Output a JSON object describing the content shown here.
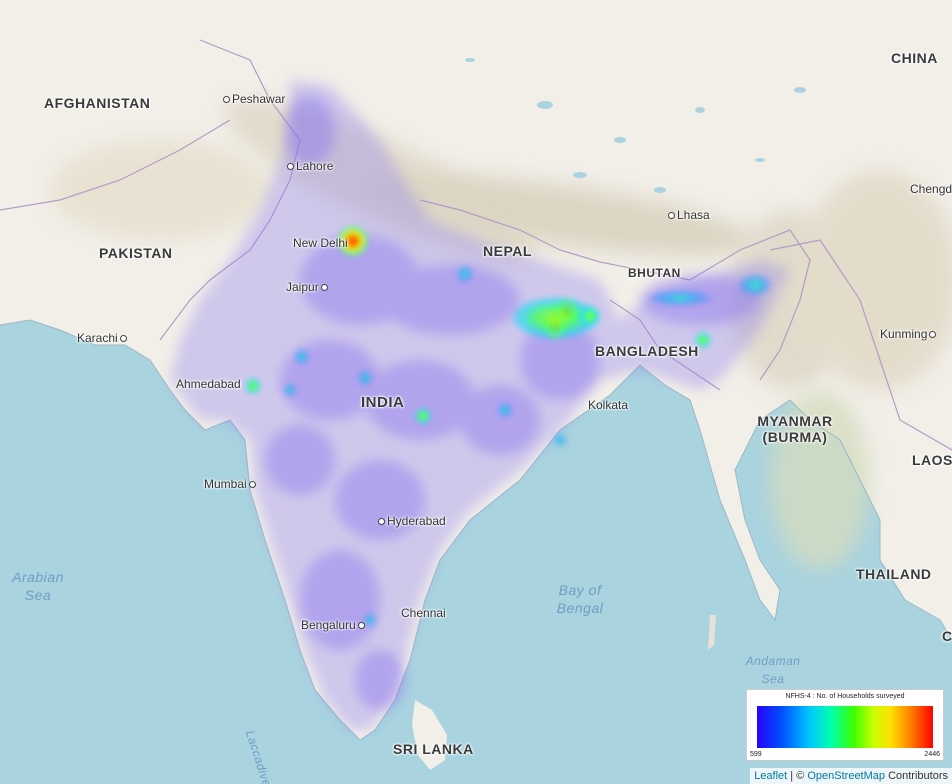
{
  "map": {
    "countries": [
      "AFGHANISTAN",
      "PAKISTAN",
      "NEPAL",
      "BHUTAN",
      "BANGLADESH",
      "INDIA",
      "CHINA",
      "MYANMAR (BURMA)",
      "LAOS",
      "THAILAND",
      "SRI LANKA",
      "C"
    ],
    "cities": [
      "Peshawar",
      "Lahore",
      "New Delhi",
      "Jaipur",
      "Karachi",
      "Ahmedabad",
      "Mumbai",
      "Hyderabad",
      "Bengaluru",
      "Chennai",
      "Kolkata",
      "Lhasa",
      "Kunming",
      "Chengdu"
    ],
    "water_bodies": [
      "Arabian Sea",
      "Bay of Bengal",
      "Andaman Sea",
      "Laccadive Sea"
    ]
  },
  "legend": {
    "title": "NFHS-4 : No. of Households surveyed",
    "min": "599",
    "max": "2446",
    "gradient": [
      "#2a00ff",
      "#0050ff",
      "#00c8ff",
      "#00ffb0",
      "#3cff00",
      "#c8ff00",
      "#ffe000",
      "#ff7800",
      "#ff0000"
    ]
  },
  "attribution": {
    "leaflet": "Leaflet",
    "separator": " | © ",
    "osm": "OpenStreetMap",
    "contributors": " Contributors"
  },
  "colors": {
    "water": "#a9d3df",
    "land": "#f2efe9",
    "heat_low": "#8c78f0",
    "heat_high": "#ff0000"
  }
}
